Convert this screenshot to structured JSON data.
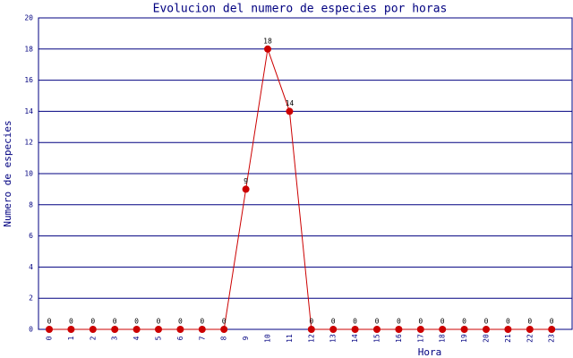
{
  "chart_data": {
    "type": "line",
    "title": "Evolucion del numero de especies por horas",
    "x_label": "Hora",
    "y_label": "Numero de especies",
    "categories": [
      "0",
      "1",
      "2",
      "3",
      "4",
      "5",
      "6",
      "7",
      "8",
      "9",
      "10",
      "11",
      "12",
      "13",
      "14",
      "15",
      "16",
      "17",
      "18",
      "19",
      "20",
      "21",
      "22",
      "23"
    ],
    "series": [
      {
        "name": "especies",
        "color": "#cc0000",
        "values": [
          0,
          0,
          0,
          0,
          0,
          0,
          0,
          0,
          0,
          9,
          18,
          14,
          0,
          0,
          0,
          0,
          0,
          0,
          0,
          0,
          0,
          0,
          0,
          0
        ]
      }
    ],
    "ylim": [
      0,
      20
    ],
    "yticks": [
      0,
      2,
      4,
      6,
      8,
      10,
      12,
      14,
      16,
      18,
      20
    ],
    "grid": true
  }
}
